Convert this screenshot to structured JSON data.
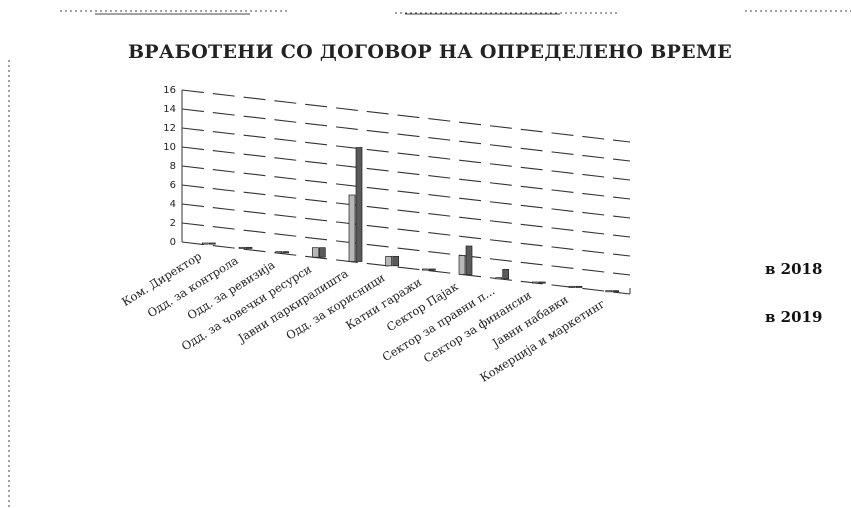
{
  "chart_data": {
    "type": "bar",
    "title": "ВРАБОТЕНИ СО ДОГОВОР НА ОПРЕДЕЛЕНО ВРЕМЕ",
    "xlabel": "",
    "ylabel": "",
    "ylim": [
      0,
      16
    ],
    "yticks": [
      "0",
      "2",
      "4",
      "6",
      "8",
      "10",
      "12",
      "14",
      "16"
    ],
    "grid": true,
    "legend_position": "right",
    "categories": [
      "Ком. Директор",
      "Одд. за контрола",
      "Одд. за ревизија",
      "Одд. за човечки ресурси",
      "Јавни паркиралишта",
      "Одд. за корисници",
      "Катни гаражи",
      "Сектор Пајак",
      "Сектор за правни п...",
      "Сектор за финансии",
      "Јавни набавки",
      "Комерција и маркетинг"
    ],
    "series": [
      {
        "name": "2018",
        "values": [
          0,
          0,
          0,
          1,
          7,
          1,
          0,
          2,
          0,
          0,
          0,
          0
        ]
      },
      {
        "name": "2019",
        "values": [
          0,
          0,
          0,
          1,
          12,
          1,
          0,
          3,
          1,
          0,
          0,
          0
        ]
      }
    ]
  },
  "legend_labels": [
    "в 2018",
    "в 2019"
  ]
}
